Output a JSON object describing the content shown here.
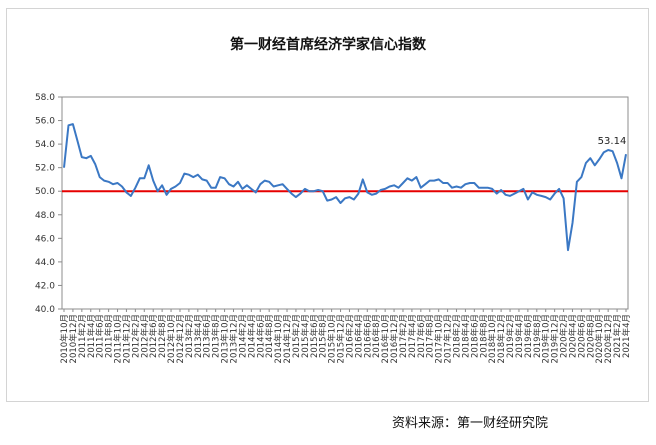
{
  "chart_data": {
    "type": "line",
    "title": "第一财经首席经济学家信心指数",
    "source_note": "资料来源：第一财经研究院",
    "y_ticks": [
      "40.0",
      "42.0",
      "44.0",
      "46.0",
      "48.0",
      "50.0",
      "52.0",
      "54.0",
      "56.0",
      "58.0"
    ],
    "ylim": [
      40,
      58
    ],
    "grid": false,
    "reference_line": {
      "value": 50,
      "color": "#e60000"
    },
    "series_color": "#3b78c4",
    "last_label": "53.14",
    "x": [
      "2010年10月",
      "2010年11月",
      "2010年12月",
      "2011年1月",
      "2011年2月",
      "2011年3月",
      "2011年4月",
      "2011年5月",
      "2011年6月",
      "2011年7月",
      "2011年8月",
      "2011年9月",
      "2011年10月",
      "2011年11月",
      "2011年12月",
      "2012年1月",
      "2012年2月",
      "2012年3月",
      "2012年4月",
      "2012年5月",
      "2012年6月",
      "2012年7月",
      "2012年8月",
      "2012年9月",
      "2012年10月",
      "2012年11月",
      "2012年12月",
      "2013年1月",
      "2013年2月",
      "2013年3月",
      "2013年4月",
      "2013年5月",
      "2013年6月",
      "2013年7月",
      "2013年8月",
      "2013年9月",
      "2013年10月",
      "2013年11月",
      "2013年12月",
      "2014年1月",
      "2014年2月",
      "2014年3月",
      "2014年4月",
      "2014年5月",
      "2014年6月",
      "2014年7月",
      "2014年8月",
      "2014年9月",
      "2014年10月",
      "2014年11月",
      "2014年12月",
      "2015年1月",
      "2015年2月",
      "2015年3月",
      "2015年4月",
      "2015年5月",
      "2015年6月",
      "2015年7月",
      "2015年8月",
      "2015年9月",
      "2015年10月",
      "2015年11月",
      "2015年12月",
      "2016年1月",
      "2016年2月",
      "2016年3月",
      "2016年4月",
      "2016年5月",
      "2016年6月",
      "2016年7月",
      "2016年8月",
      "2016年9月",
      "2016年10月",
      "2016年11月",
      "2016年12月",
      "2017年1月",
      "2017年2月",
      "2017年3月",
      "2017年4月",
      "2017年5月",
      "2017年6月",
      "2017年7月",
      "2017年8月",
      "2017年9月",
      "2017年10月",
      "2017年11月",
      "2017年12月",
      "2018年1月",
      "2018年2月",
      "2018年3月",
      "2018年4月",
      "2018年5月",
      "2018年6月",
      "2018年7月",
      "2018年8月",
      "2018年9月",
      "2018年10月",
      "2018年11月",
      "2018年12月",
      "2019年1月",
      "2019年2月",
      "2019年3月",
      "2019年4月",
      "2019年5月",
      "2019年6月",
      "2019年7月",
      "2019年8月",
      "2019年9月",
      "2019年10月",
      "2019年11月",
      "2019年12月",
      "2020年1月",
      "2020年2月",
      "2020年3月",
      "2020年4月",
      "2020年5月",
      "2020年6月",
      "2020年7月",
      "2020年8月",
      "2020年9月",
      "2020年10月",
      "2020年11月",
      "2020年12月",
      "2021年1月",
      "2021年2月",
      "2021年3月",
      "2021年4月"
    ],
    "x_tick_labels": [
      "2010年10月",
      "2010年12月",
      "2011年2月",
      "2011年4月",
      "2011年6月",
      "2011年8月",
      "2011年10月",
      "2011年12月",
      "2012年2月",
      "2012年4月",
      "2012年6月",
      "2012年8月",
      "2012年10月",
      "2012年12月",
      "2013年2月",
      "2013年4月",
      "2013年6月",
      "2013年8月",
      "2013年10月",
      "2013年12月",
      "2014年2月",
      "2014年4月",
      "2014年6月",
      "2014年8月",
      "2014年10月",
      "2014年12月",
      "2015年2月",
      "2015年4月",
      "2015年6月",
      "2015年8月",
      "2015年10月",
      "2015年12月",
      "2016年2月",
      "2016年4月",
      "2016年6月",
      "2016年8月",
      "2016年10月",
      "2016年12月",
      "2017年2月",
      "2017年4月",
      "2017年6月",
      "2017年8月",
      "2017年10月",
      "2017年12月",
      "2018年2月",
      "2018年4月",
      "2018年6月",
      "2018年8月",
      "2018年10月",
      "2018年12月",
      "2019年2月",
      "2019年4月",
      "2019年6月",
      "2019年8月",
      "2019年10月",
      "2019年12月",
      "2020年2月",
      "2020年4月",
      "2020年6月",
      "2020年8月",
      "2020年10月",
      "2020年12月",
      "2021年2月",
      "2021年4月"
    ],
    "values": [
      52.0,
      55.6,
      55.7,
      54.3,
      52.9,
      52.8,
      53.0,
      52.3,
      51.2,
      50.9,
      50.8,
      50.6,
      50.7,
      50.4,
      49.9,
      49.6,
      50.3,
      51.1,
      51.1,
      52.2,
      50.9,
      50.0,
      50.5,
      49.7,
      50.2,
      50.4,
      50.7,
      51.5,
      51.4,
      51.2,
      51.4,
      51.0,
      50.9,
      50.3,
      50.3,
      51.2,
      51.1,
      50.6,
      50.4,
      50.8,
      50.2,
      50.5,
      50.2,
      49.9,
      50.6,
      50.9,
      50.8,
      50.4,
      50.5,
      50.6,
      50.2,
      49.8,
      49.5,
      49.8,
      50.2,
      50.0,
      50.0,
      50.1,
      50.0,
      49.2,
      49.3,
      49.5,
      49.0,
      49.4,
      49.5,
      49.3,
      49.8,
      51.0,
      49.9,
      49.7,
      49.8,
      50.1,
      50.2,
      50.4,
      50.5,
      50.3,
      50.7,
      51.1,
      50.9,
      51.2,
      50.3,
      50.6,
      50.9,
      50.9,
      51.0,
      50.7,
      50.7,
      50.3,
      50.4,
      50.3,
      50.6,
      50.7,
      50.7,
      50.3,
      50.3,
      50.3,
      50.2,
      49.8,
      50.1,
      49.7,
      49.6,
      49.8,
      50.0,
      50.2,
      49.3,
      49.9,
      49.7,
      49.6,
      49.5,
      49.3,
      49.8,
      50.2,
      49.4,
      45.0,
      47.3,
      50.8,
      51.2,
      52.4,
      52.8,
      52.2,
      52.7,
      53.3,
      53.5,
      53.4,
      52.4,
      51.1,
      53.14
    ]
  }
}
